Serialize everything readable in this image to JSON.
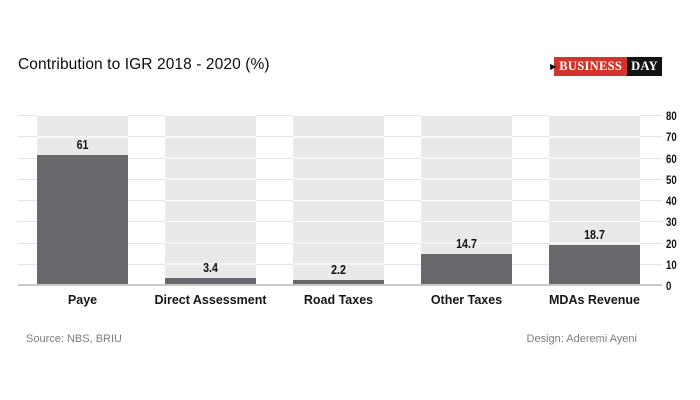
{
  "header": {
    "title": "Contribution to IGR 2018 - 2020 (%)",
    "logo": {
      "business": "BUSINESS",
      "day": "DAY",
      "arrow": "▶",
      "red_color": "#d2342c",
      "black_color": "#121212"
    }
  },
  "chart_data": {
    "type": "bar",
    "title": "Contribution to IGR 2018 - 2020 (%)",
    "categories": [
      "Paye",
      "Direct Assessment",
      "Road Taxes",
      "Other Taxes",
      "MDAs Revenue"
    ],
    "values": [
      61,
      3.4,
      2.2,
      14.7,
      18.7
    ],
    "value_labels": [
      "61",
      "3.4",
      "2.2",
      "14.7",
      "18.7"
    ],
    "xlabel": "",
    "ylabel": "",
    "ylim": [
      0,
      80
    ],
    "yticks": [
      0,
      10,
      20,
      30,
      40,
      50,
      60,
      70,
      80
    ],
    "yaxis_side": "right",
    "grid": true,
    "legend": "none",
    "bar_color": "#69696d",
    "column_bg_color": "#e9e9e9",
    "gridline_color": "#e4e4e4",
    "baseline_color": "#c9c9c9"
  },
  "footer": {
    "source": "Source: NBS, BRIU",
    "design": "Design: Aderemi Ayeni"
  }
}
